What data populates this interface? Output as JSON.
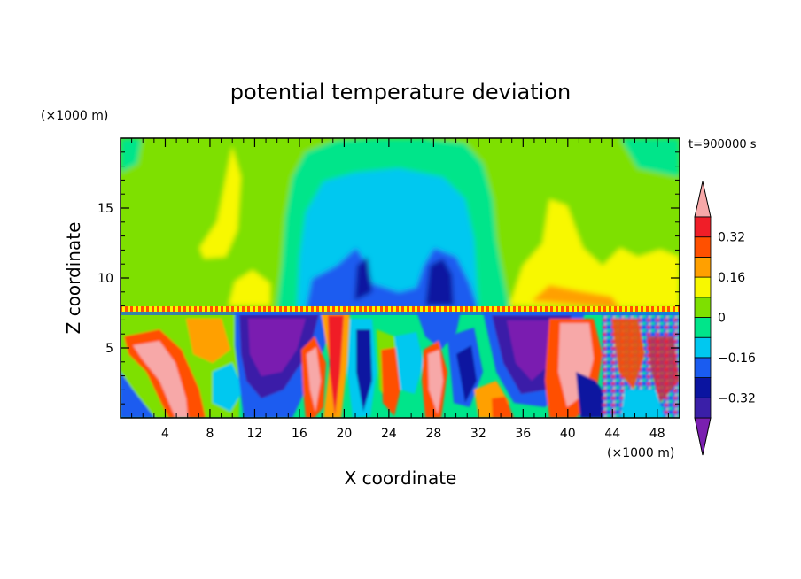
{
  "chart_data": {
    "type": "heatmap",
    "title": "potential temperature deviation",
    "xlabel": "X coordinate",
    "ylabel": "Z coordinate",
    "x_unit": "(×1000 m)",
    "y_unit": "(×1000 m)",
    "time_label": "t=900000 s",
    "xlim": [
      0,
      50
    ],
    "ylim": [
      0,
      20
    ],
    "x_ticks": [
      4,
      8,
      12,
      16,
      20,
      24,
      28,
      32,
      36,
      40,
      44,
      48
    ],
    "y_ticks": [
      5,
      10,
      15
    ],
    "colorbar": {
      "levels": [
        -0.4,
        -0.32,
        -0.24,
        -0.16,
        -0.08,
        0,
        0.08,
        0.16,
        0.24,
        0.32,
        0.4
      ],
      "colors": [
        "#7a1fb0",
        "#3a1fa8",
        "#0a14a0",
        "#1a5cf0",
        "#00c8f0",
        "#00e58a",
        "#7ee000",
        "#f8f800",
        "#ffa000",
        "#ff5000",
        "#f01e28",
        "#f7a8a8"
      ],
      "tick_labels": [
        "0.32",
        "0.16",
        "0",
        "−0.16",
        "−0.32"
      ],
      "tick_values": [
        0.32,
        0.16,
        0,
        -0.16,
        -0.32
      ]
    },
    "regions": [
      {
        "value": 0.05,
        "x_range": [
          0,
          50
        ],
        "z_range": [
          8,
          20
        ]
      },
      {
        "value": 0.12,
        "x_range": [
          0,
          12
        ],
        "z_range": [
          9,
          19
        ]
      },
      {
        "value": 0.12,
        "x_range": [
          36,
          50
        ],
        "z_range": [
          9,
          15
        ]
      },
      {
        "value": -0.02,
        "x_range": [
          15,
          36
        ],
        "z_range": [
          8,
          20
        ]
      },
      {
        "value": -0.1,
        "x_range": [
          18,
          34
        ],
        "z_range": [
          8,
          17
        ]
      },
      {
        "value": -0.3,
        "x_range": [
          20,
          32
        ],
        "z_range": [
          8,
          12.5
        ]
      },
      {
        "value": -0.4,
        "x_range": [
          11,
          17
        ],
        "z_range": [
          1,
          7.5
        ]
      },
      {
        "value": -0.4,
        "x_range": [
          34,
          39
        ],
        "z_range": [
          2,
          7.5
        ]
      },
      {
        "value": 0.4,
        "x_range": [
          2,
          6
        ],
        "z_range": [
          0.5,
          5.5
        ]
      },
      {
        "value": 0.4,
        "x_range": [
          28,
          32
        ],
        "z_range": [
          1,
          7
        ]
      },
      {
        "value": 0.4,
        "x_range": [
          37,
          42
        ],
        "z_range": [
          2,
          7.5
        ]
      }
    ]
  }
}
